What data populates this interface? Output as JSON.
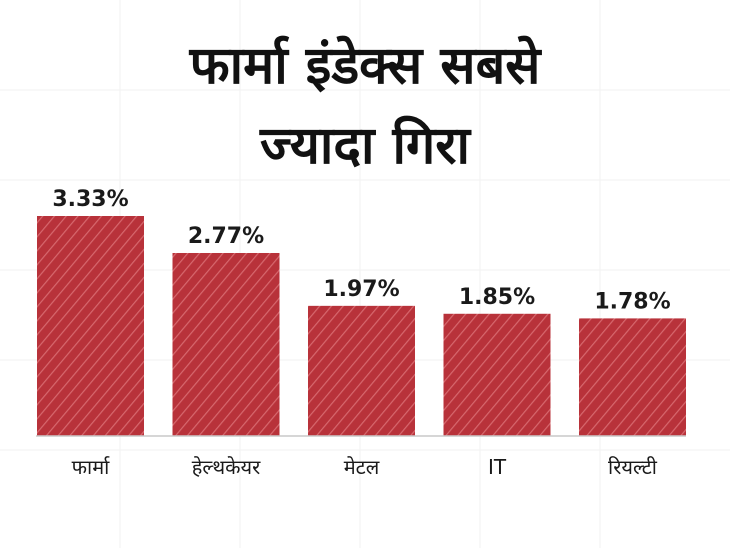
{
  "title_lines": [
    "फार्मा इंडेक्स सबसे",
    "ज्यादा गिरा"
  ],
  "chart_data": {
    "type": "bar",
    "title": "फार्मा इंडेक्स सबसे ज्यादा गिरा",
    "categories": [
      "फार्मा",
      "हेल्थकेयर",
      "मेटल",
      "IT",
      "रियल्टी"
    ],
    "values": [
      3.33,
      2.77,
      1.97,
      1.85,
      1.78
    ],
    "value_labels": [
      "3.33%",
      "2.77%",
      "1.97%",
      "1.85%",
      "1.78%"
    ],
    "unit": "%",
    "xlabel": "",
    "ylabel": "",
    "bar_color": "#b8323a",
    "stripe_color": "#d7686e",
    "grid": false,
    "legend": false
  }
}
